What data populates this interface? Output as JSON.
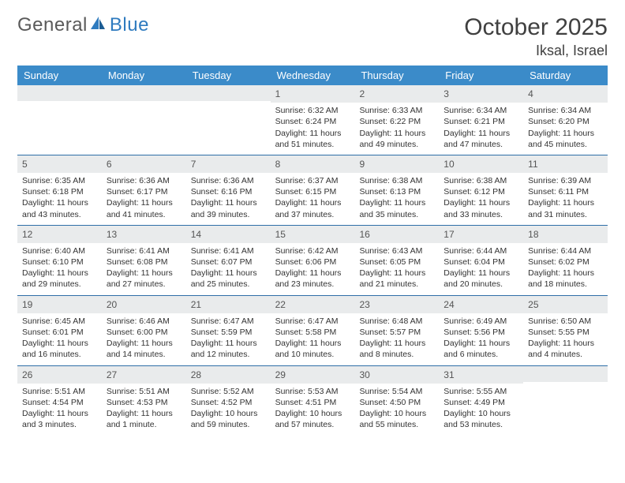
{
  "brand": {
    "part1": "General",
    "part2": "Blue"
  },
  "title": "October 2025",
  "location": "Iksal, Israel",
  "colors": {
    "header_bg": "#3b8bc9",
    "week_border": "#2f6fa8",
    "daynum_bg": "#e9ebec",
    "text": "#333333",
    "title_text": "#404040"
  },
  "dow": [
    "Sunday",
    "Monday",
    "Tuesday",
    "Wednesday",
    "Thursday",
    "Friday",
    "Saturday"
  ],
  "weeks": [
    [
      {
        "n": "",
        "sunrise": "",
        "sunset": "",
        "daylight": ""
      },
      {
        "n": "",
        "sunrise": "",
        "sunset": "",
        "daylight": ""
      },
      {
        "n": "",
        "sunrise": "",
        "sunset": "",
        "daylight": ""
      },
      {
        "n": "1",
        "sunrise": "Sunrise: 6:32 AM",
        "sunset": "Sunset: 6:24 PM",
        "daylight": "Daylight: 11 hours and 51 minutes."
      },
      {
        "n": "2",
        "sunrise": "Sunrise: 6:33 AM",
        "sunset": "Sunset: 6:22 PM",
        "daylight": "Daylight: 11 hours and 49 minutes."
      },
      {
        "n": "3",
        "sunrise": "Sunrise: 6:34 AM",
        "sunset": "Sunset: 6:21 PM",
        "daylight": "Daylight: 11 hours and 47 minutes."
      },
      {
        "n": "4",
        "sunrise": "Sunrise: 6:34 AM",
        "sunset": "Sunset: 6:20 PM",
        "daylight": "Daylight: 11 hours and 45 minutes."
      }
    ],
    [
      {
        "n": "5",
        "sunrise": "Sunrise: 6:35 AM",
        "sunset": "Sunset: 6:18 PM",
        "daylight": "Daylight: 11 hours and 43 minutes."
      },
      {
        "n": "6",
        "sunrise": "Sunrise: 6:36 AM",
        "sunset": "Sunset: 6:17 PM",
        "daylight": "Daylight: 11 hours and 41 minutes."
      },
      {
        "n": "7",
        "sunrise": "Sunrise: 6:36 AM",
        "sunset": "Sunset: 6:16 PM",
        "daylight": "Daylight: 11 hours and 39 minutes."
      },
      {
        "n": "8",
        "sunrise": "Sunrise: 6:37 AM",
        "sunset": "Sunset: 6:15 PM",
        "daylight": "Daylight: 11 hours and 37 minutes."
      },
      {
        "n": "9",
        "sunrise": "Sunrise: 6:38 AM",
        "sunset": "Sunset: 6:13 PM",
        "daylight": "Daylight: 11 hours and 35 minutes."
      },
      {
        "n": "10",
        "sunrise": "Sunrise: 6:38 AM",
        "sunset": "Sunset: 6:12 PM",
        "daylight": "Daylight: 11 hours and 33 minutes."
      },
      {
        "n": "11",
        "sunrise": "Sunrise: 6:39 AM",
        "sunset": "Sunset: 6:11 PM",
        "daylight": "Daylight: 11 hours and 31 minutes."
      }
    ],
    [
      {
        "n": "12",
        "sunrise": "Sunrise: 6:40 AM",
        "sunset": "Sunset: 6:10 PM",
        "daylight": "Daylight: 11 hours and 29 minutes."
      },
      {
        "n": "13",
        "sunrise": "Sunrise: 6:41 AM",
        "sunset": "Sunset: 6:08 PM",
        "daylight": "Daylight: 11 hours and 27 minutes."
      },
      {
        "n": "14",
        "sunrise": "Sunrise: 6:41 AM",
        "sunset": "Sunset: 6:07 PM",
        "daylight": "Daylight: 11 hours and 25 minutes."
      },
      {
        "n": "15",
        "sunrise": "Sunrise: 6:42 AM",
        "sunset": "Sunset: 6:06 PM",
        "daylight": "Daylight: 11 hours and 23 minutes."
      },
      {
        "n": "16",
        "sunrise": "Sunrise: 6:43 AM",
        "sunset": "Sunset: 6:05 PM",
        "daylight": "Daylight: 11 hours and 21 minutes."
      },
      {
        "n": "17",
        "sunrise": "Sunrise: 6:44 AM",
        "sunset": "Sunset: 6:04 PM",
        "daylight": "Daylight: 11 hours and 20 minutes."
      },
      {
        "n": "18",
        "sunrise": "Sunrise: 6:44 AM",
        "sunset": "Sunset: 6:02 PM",
        "daylight": "Daylight: 11 hours and 18 minutes."
      }
    ],
    [
      {
        "n": "19",
        "sunrise": "Sunrise: 6:45 AM",
        "sunset": "Sunset: 6:01 PM",
        "daylight": "Daylight: 11 hours and 16 minutes."
      },
      {
        "n": "20",
        "sunrise": "Sunrise: 6:46 AM",
        "sunset": "Sunset: 6:00 PM",
        "daylight": "Daylight: 11 hours and 14 minutes."
      },
      {
        "n": "21",
        "sunrise": "Sunrise: 6:47 AM",
        "sunset": "Sunset: 5:59 PM",
        "daylight": "Daylight: 11 hours and 12 minutes."
      },
      {
        "n": "22",
        "sunrise": "Sunrise: 6:47 AM",
        "sunset": "Sunset: 5:58 PM",
        "daylight": "Daylight: 11 hours and 10 minutes."
      },
      {
        "n": "23",
        "sunrise": "Sunrise: 6:48 AM",
        "sunset": "Sunset: 5:57 PM",
        "daylight": "Daylight: 11 hours and 8 minutes."
      },
      {
        "n": "24",
        "sunrise": "Sunrise: 6:49 AM",
        "sunset": "Sunset: 5:56 PM",
        "daylight": "Daylight: 11 hours and 6 minutes."
      },
      {
        "n": "25",
        "sunrise": "Sunrise: 6:50 AM",
        "sunset": "Sunset: 5:55 PM",
        "daylight": "Daylight: 11 hours and 4 minutes."
      }
    ],
    [
      {
        "n": "26",
        "sunrise": "Sunrise: 5:51 AM",
        "sunset": "Sunset: 4:54 PM",
        "daylight": "Daylight: 11 hours and 3 minutes."
      },
      {
        "n": "27",
        "sunrise": "Sunrise: 5:51 AM",
        "sunset": "Sunset: 4:53 PM",
        "daylight": "Daylight: 11 hours and 1 minute."
      },
      {
        "n": "28",
        "sunrise": "Sunrise: 5:52 AM",
        "sunset": "Sunset: 4:52 PM",
        "daylight": "Daylight: 10 hours and 59 minutes."
      },
      {
        "n": "29",
        "sunrise": "Sunrise: 5:53 AM",
        "sunset": "Sunset: 4:51 PM",
        "daylight": "Daylight: 10 hours and 57 minutes."
      },
      {
        "n": "30",
        "sunrise": "Sunrise: 5:54 AM",
        "sunset": "Sunset: 4:50 PM",
        "daylight": "Daylight: 10 hours and 55 minutes."
      },
      {
        "n": "31",
        "sunrise": "Sunrise: 5:55 AM",
        "sunset": "Sunset: 4:49 PM",
        "daylight": "Daylight: 10 hours and 53 minutes."
      },
      {
        "n": "",
        "sunrise": "",
        "sunset": "",
        "daylight": ""
      }
    ]
  ]
}
